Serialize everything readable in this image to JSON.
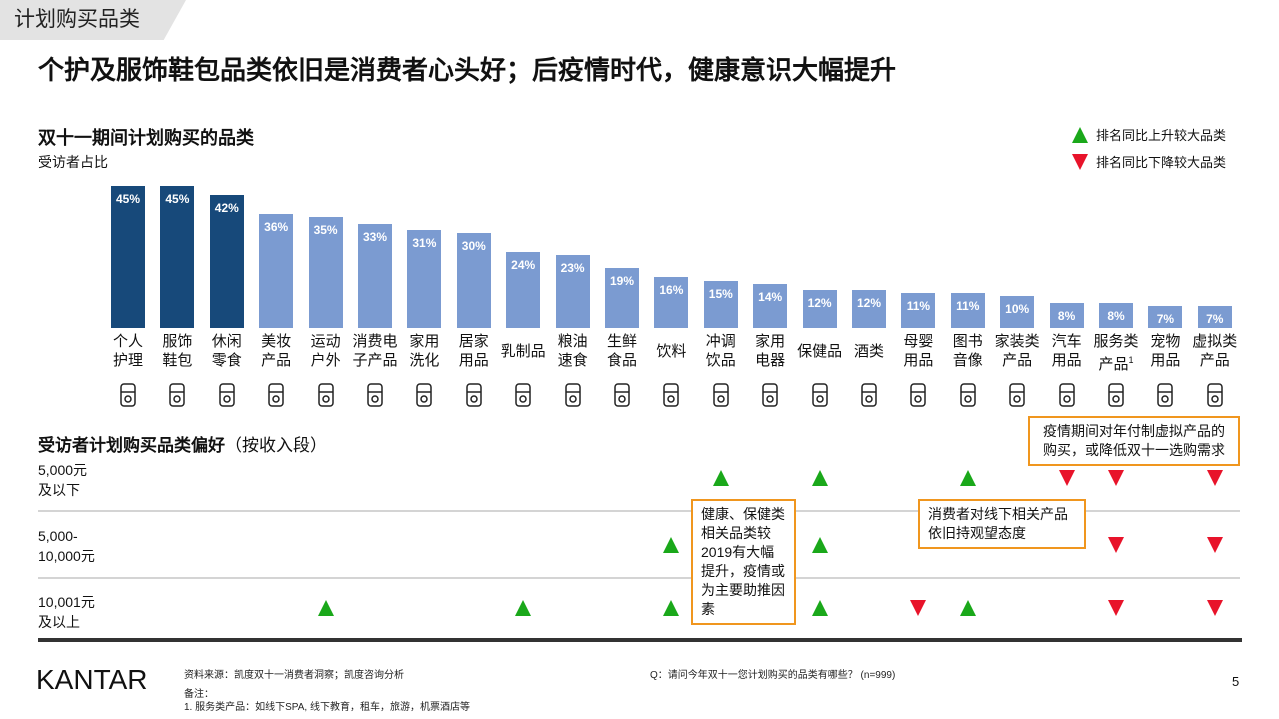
{
  "header": {
    "tag": "计划购买品类",
    "title": "个护及服饰鞋包品类依旧是消费者心头好；后疫情时代，健康意识大幅提升"
  },
  "legend": {
    "up": "排名同比上升较大品类",
    "down": "排名同比下降较大品类",
    "up_color": "#1aa81a",
    "down_color": "#e8132a"
  },
  "chart_data": {
    "type": "bar",
    "title": "双十一期间计划购买的品类",
    "ylabel": "受访者占比",
    "unit": "%",
    "categories": [
      "个人护理",
      "服饰鞋包",
      "休闲零食",
      "美妆产品",
      "运动户外",
      "消费电子产品",
      "家用洗化",
      "居家用品",
      "乳制品",
      "粮油速食",
      "生鲜食品",
      "饮料",
      "冲调饮品",
      "家用电器",
      "保健品",
      "酒类",
      "母婴用品",
      "图书音像",
      "家装类产品",
      "汽车用品",
      "服务类产品",
      "宠物用品",
      "虚拟类产品"
    ],
    "labels": [
      [
        "个人",
        "护理"
      ],
      [
        "服饰",
        "鞋包"
      ],
      [
        "休闲",
        "零食"
      ],
      [
        "美妆",
        "产品"
      ],
      [
        "运动",
        "户外"
      ],
      [
        "消费电",
        "子产品"
      ],
      [
        "家用",
        "洗化"
      ],
      [
        "居家",
        "用品"
      ],
      [
        "乳制品",
        ""
      ],
      [
        "粮油",
        "速食"
      ],
      [
        "生鲜",
        "食品"
      ],
      [
        "饮料",
        ""
      ],
      [
        "冲调",
        "饮品"
      ],
      [
        "家用",
        "电器"
      ],
      [
        "保健品",
        ""
      ],
      [
        "酒类",
        ""
      ],
      [
        "母婴",
        "用品"
      ],
      [
        "图书",
        "音像"
      ],
      [
        "家装类",
        "产品"
      ],
      [
        "汽车",
        "用品"
      ],
      [
        "服务类",
        "产品"
      ],
      [
        "宠物",
        "用品"
      ],
      [
        "虚拟类",
        "产品"
      ]
    ],
    "values": [
      45,
      45,
      42,
      36,
      35,
      33,
      31,
      30,
      24,
      23,
      19,
      16,
      15,
      14,
      12,
      12,
      11,
      11,
      10,
      8,
      8,
      7,
      7
    ],
    "value_labels": [
      "45%",
      "45%",
      "42%",
      "36%",
      "35%",
      "33%",
      "31%",
      "30%",
      "24%",
      "23%",
      "19%",
      "16%",
      "15%",
      "14%",
      "12%",
      "12%",
      "11%",
      "11%",
      "10%",
      "8%",
      "8%",
      "7%",
      "7%"
    ],
    "highlight_count": 3,
    "colors": {
      "highlight": "#17497a",
      "default": "#7b9bd1"
    },
    "footnote_marker_index": 20,
    "footnote_marker": "1"
  },
  "icons": [
    "sunscreen-tube-icon",
    "tshirt-icon",
    "candy-icon",
    "makeup-brush-icon",
    "dumbbell-icon",
    "earbuds-icon",
    "pump-bottle-icon",
    "hanger-towel-icon",
    "milk-carton-icon",
    "rice-bowl-icon",
    "crab-icon",
    "drink-cup-icon",
    "tea-cup-icon",
    "fridge-icon",
    "pill-icon",
    "beer-mug-icon",
    "baby-bottle-icon",
    "book-icon",
    "bed-icon",
    "car-service-icon",
    "passport-ticket-icon",
    "pet-icon",
    "phone-wifi-icon"
  ],
  "preferences": {
    "title": "受访者计划购买品类偏好",
    "title_suffix": "（按收入段）",
    "rows": [
      {
        "label": [
          "5,000元",
          "及以下"
        ],
        "up": [
          12,
          14,
          17
        ],
        "down": [
          19,
          20,
          22
        ]
      },
      {
        "label": [
          "5,000-",
          "10,000元"
        ],
        "up": [
          11,
          14
        ],
        "down": [
          20,
          22
        ]
      },
      {
        "label": [
          "10,001元",
          "及以上"
        ],
        "up": [
          4,
          8,
          11,
          14,
          17
        ],
        "down": [
          16,
          20,
          22
        ]
      }
    ]
  },
  "callouts": {
    "health": "健康、保健类相关品类较2019有大幅提升，疫情或为主要助推因素",
    "offline": "消费者对线下相关产品依旧持观望态度",
    "virtual": "疫情期间对年付制虚拟产品的购买，或降低双十一选购需求"
  },
  "footer": {
    "logo": "KANTAR",
    "source": "资料来源：凯度双十一消费者洞察；凯度咨询分析",
    "notes_title": "备注：",
    "note1": "1.    服务类产品：如线下SPA, 线下教育，租车，旅游，机票酒店等",
    "question": "Q：请问今年双十一您计划购买的品类有哪些？ (n=999)",
    "page": "5"
  }
}
